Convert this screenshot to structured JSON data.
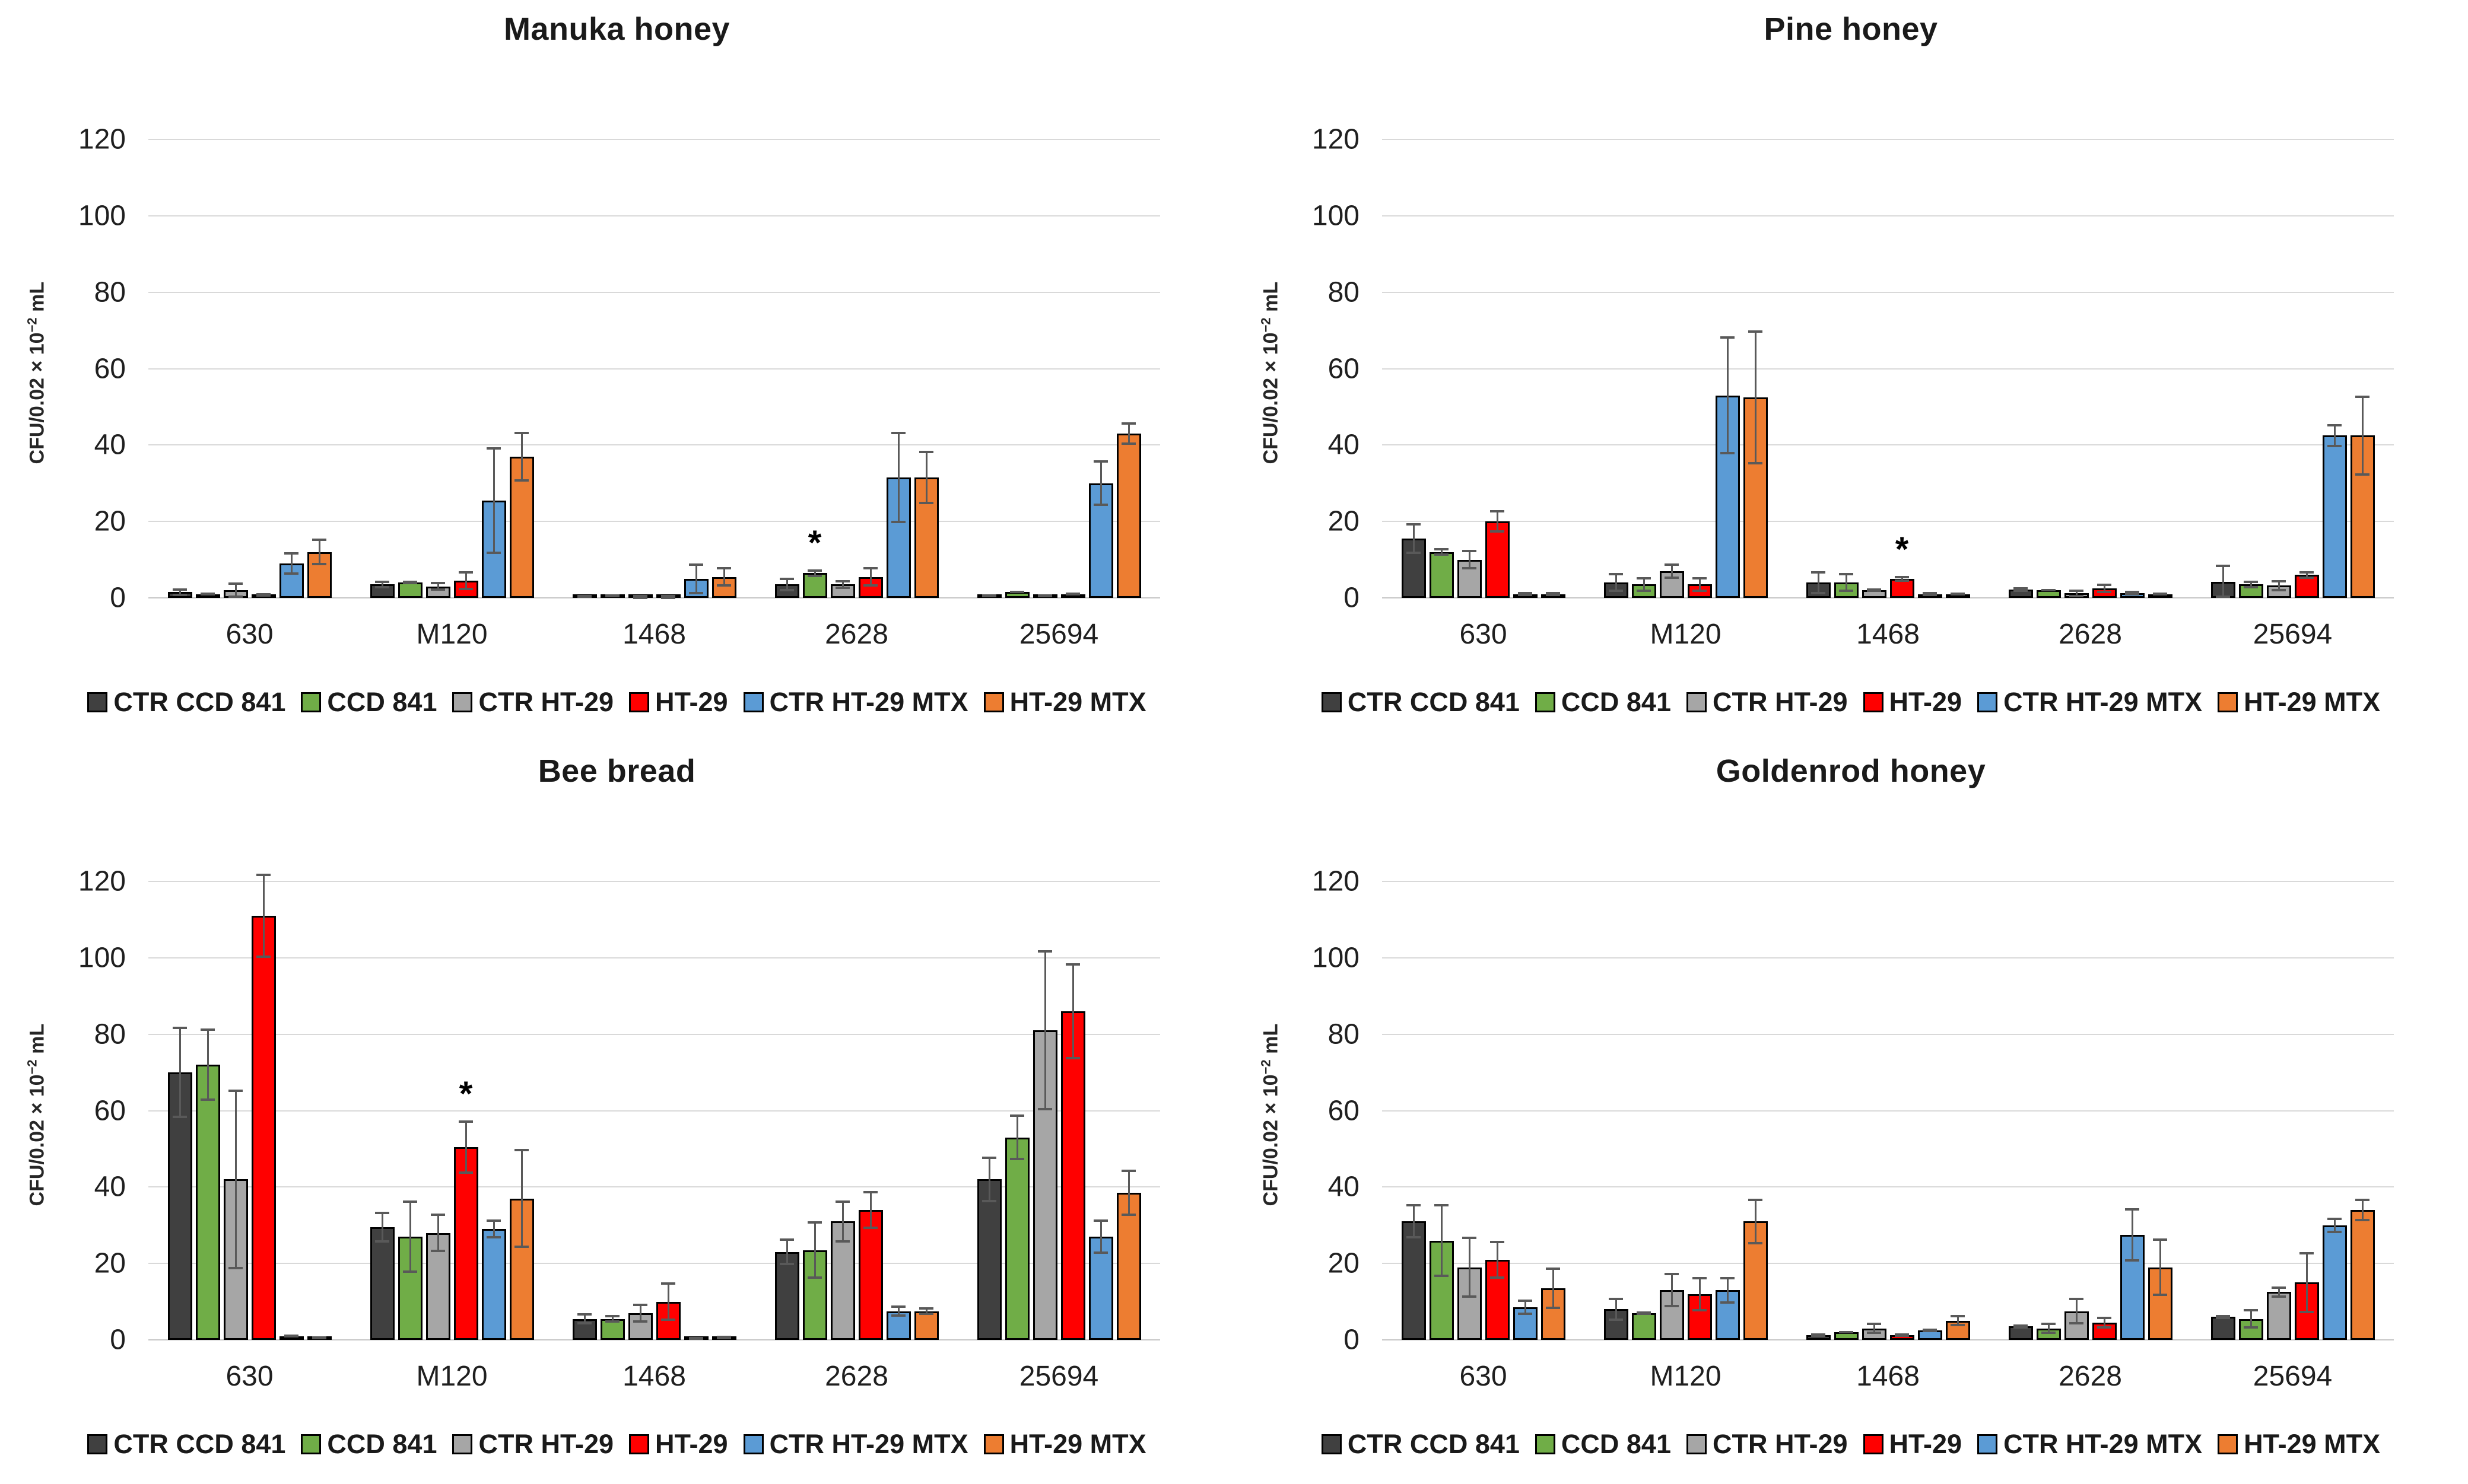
{
  "ylabel_parts": {
    "prefix": "CFU/0.02 × 10",
    "sup": "−2",
    "suffix": " mL"
  },
  "yticks": [
    0,
    20,
    40,
    60,
    80,
    100,
    120
  ],
  "categories": [
    "630",
    "M120",
    "1468",
    "2628",
    "25694"
  ],
  "legend": [
    {
      "label": "CTR CCD 841",
      "color": "#404040"
    },
    {
      "label": "CCD 841",
      "color": "#70AD47"
    },
    {
      "label": "CTR HT-29",
      "color": "#A6A6A6"
    },
    {
      "label": "HT-29",
      "color": "#FF0000"
    },
    {
      "label": "CTR HT-29 MTX",
      "color": "#5B9BD5"
    },
    {
      "label": "HT-29 MTX",
      "color": "#ED7D31"
    }
  ],
  "style": {
    "bar_border": "#000000",
    "error_bar_color": "#595959",
    "gridline_color": "#D9D9D9",
    "background": "#FFFFFF"
  },
  "chart_data": [
    {
      "type": "bar",
      "title": "Manuka honey",
      "xlabel": "",
      "ylabel": "CFU/0.02 × 10⁻² mL",
      "ylim": [
        0,
        120
      ],
      "grid": true,
      "legend_position": "bottom",
      "categories": [
        "630",
        "M120",
        "1468",
        "2628",
        "25694"
      ],
      "series": [
        {
          "name": "CTR CCD 841",
          "color": "#404040",
          "values": [
            1.5,
            3.5,
            0.4,
            3.5,
            0.5
          ],
          "errors": [
            1,
            1,
            0.2,
            1.8,
            0.2
          ]
        },
        {
          "name": "CCD 841",
          "color": "#70AD47",
          "values": [
            1,
            4,
            0.5,
            6.5,
            1.5
          ],
          "errors": [
            0.4,
            0.5,
            0.2,
            1,
            0.3
          ]
        },
        {
          "name": "CTR HT-29",
          "color": "#A6A6A6",
          "values": [
            2,
            3,
            0.2,
            3.5,
            0.5
          ],
          "errors": [
            2,
            1.2,
            0.1,
            1.2,
            0.2
          ]
        },
        {
          "name": "HT-29",
          "color": "#FF0000",
          "values": [
            0.8,
            4.5,
            0.2,
            5.5,
            1
          ],
          "errors": [
            0.5,
            2.5,
            0.1,
            2.5,
            0.3
          ]
        },
        {
          "name": "CTR HT-29 MTX",
          "color": "#5B9BD5",
          "values": [
            9,
            25.5,
            5,
            31.5,
            30
          ],
          "errors": [
            3,
            14,
            4,
            12,
            6
          ]
        },
        {
          "name": "HT-29 MTX",
          "color": "#ED7D31",
          "values": [
            12,
            37,
            5.5,
            31.5,
            43
          ],
          "errors": [
            3.5,
            6.5,
            2.5,
            7,
            3
          ]
        }
      ],
      "annotations": [
        {
          "category": "2628",
          "series": "CCD 841",
          "symbol": "*"
        }
      ]
    },
    {
      "type": "bar",
      "title": "Pine honey",
      "xlabel": "",
      "ylabel": "CFU/0.02 × 10⁻² mL",
      "ylim": [
        0,
        120
      ],
      "grid": true,
      "legend_position": "bottom",
      "categories": [
        "630",
        "M120",
        "1468",
        "2628",
        "25694"
      ],
      "series": [
        {
          "name": "CTR CCD 841",
          "color": "#404040",
          "values": [
            15.5,
            4,
            4,
            2.2,
            4.2
          ],
          "errors": [
            4,
            2.5,
            3,
            0.6,
            4.5
          ]
        },
        {
          "name": "CCD 841",
          "color": "#70AD47",
          "values": [
            12,
            3.5,
            4,
            2,
            3.5
          ],
          "errors": [
            1,
            2,
            2.5,
            0.3,
            1
          ]
        },
        {
          "name": "CTR HT-29",
          "color": "#A6A6A6",
          "values": [
            10,
            7,
            2,
            1.2,
            3.2
          ],
          "errors": [
            2.5,
            2,
            0.5,
            1,
            1.5
          ]
        },
        {
          "name": "HT-29",
          "color": "#FF0000",
          "values": [
            20,
            3.5,
            5,
            2.5,
            6
          ],
          "errors": [
            3,
            2,
            0.8,
            1.2,
            1
          ]
        },
        {
          "name": "CTR HT-29 MTX",
          "color": "#5B9BD5",
          "values": [
            1,
            53,
            1,
            1.2,
            42.5
          ],
          "errors": [
            0.5,
            15.5,
            0.5,
            0.6,
            3
          ]
        },
        {
          "name": "HT-29 MTX",
          "color": "#ED7D31",
          "values": [
            1,
            52.5,
            1,
            1,
            42.5
          ],
          "errors": [
            0.5,
            17.5,
            0.3,
            0.3,
            10.5
          ]
        }
      ],
      "annotations": [
        {
          "category": "1468",
          "series": "HT-29",
          "symbol": "*"
        }
      ]
    },
    {
      "type": "bar",
      "title": "Bee bread",
      "xlabel": "",
      "ylabel": "CFU/0.02 × 10⁻² mL",
      "ylim": [
        0,
        120
      ],
      "grid": true,
      "legend_position": "bottom",
      "categories": [
        "630",
        "M120",
        "1468",
        "2628",
        "25694"
      ],
      "series": [
        {
          "name": "CTR CCD 841",
          "color": "#404040",
          "values": [
            70,
            29.5,
            5.5,
            23,
            42
          ],
          "errors": [
            12,
            4,
            1.5,
            3.5,
            6
          ]
        },
        {
          "name": "CCD 841",
          "color": "#70AD47",
          "values": [
            72,
            27,
            5.5,
            23.5,
            53
          ],
          "errors": [
            9.5,
            9.5,
            1,
            7.5,
            6
          ]
        },
        {
          "name": "CTR HT-29",
          "color": "#A6A6A6",
          "values": [
            42,
            28,
            7,
            31,
            81
          ],
          "errors": [
            23.5,
            5,
            2.5,
            5.5,
            21
          ]
        },
        {
          "name": "HT-29",
          "color": "#FF0000",
          "values": [
            111,
            50.5,
            10,
            34,
            86
          ],
          "errors": [
            11,
            7,
            5,
            5,
            12.5
          ]
        },
        {
          "name": "CTR HT-29 MTX",
          "color": "#5B9BD5",
          "values": [
            1,
            29,
            0.4,
            7.5,
            27
          ],
          "errors": [
            0.3,
            2.5,
            0.2,
            1.5,
            4.5
          ]
        },
        {
          "name": "HT-29 MTX",
          "color": "#ED7D31",
          "values": [
            0.5,
            37,
            0.6,
            7.5,
            38.5
          ],
          "errors": [
            0.2,
            13,
            0.2,
            1,
            6
          ]
        }
      ],
      "annotations": [
        {
          "category": "M120",
          "series": "HT-29",
          "symbol": "*"
        }
      ]
    },
    {
      "type": "bar",
      "title": "Goldenrod honey",
      "xlabel": "",
      "ylabel": "CFU/0.02 × 10⁻² mL",
      "ylim": [
        0,
        120
      ],
      "grid": true,
      "legend_position": "bottom",
      "categories": [
        "630",
        "M120",
        "1468",
        "2628",
        "25694"
      ],
      "series": [
        {
          "name": "CTR CCD 841",
          "color": "#404040",
          "values": [
            31,
            8,
            1.2,
            3.5,
            6
          ],
          "errors": [
            4.5,
            3,
            0.5,
            0.5,
            0.5
          ]
        },
        {
          "name": "CCD 841",
          "color": "#70AD47",
          "values": [
            26,
            7,
            2,
            3,
            5.5
          ],
          "errors": [
            9.5,
            0.5,
            0.3,
            1.5,
            2.5
          ]
        },
        {
          "name": "CTR HT-29",
          "color": "#A6A6A6",
          "values": [
            19,
            13,
            3,
            7.5,
            12.5
          ],
          "errors": [
            8,
            4.5,
            1.5,
            3.5,
            1.5
          ]
        },
        {
          "name": "HT-29",
          "color": "#FF0000",
          "values": [
            21,
            12,
            1.2,
            4.5,
            15
          ],
          "errors": [
            5,
            4.5,
            0.5,
            1.5,
            8
          ]
        },
        {
          "name": "CTR HT-29 MTX",
          "color": "#5B9BD5",
          "values": [
            8.5,
            13,
            2.5,
            27.5,
            30
          ],
          "errors": [
            2,
            3.5,
            0.5,
            7,
            2
          ]
        },
        {
          "name": "HT-29 MTX",
          "color": "#ED7D31",
          "values": [
            13.5,
            31,
            5,
            19,
            34
          ],
          "errors": [
            5.5,
            6,
            1.5,
            7.5,
            3
          ]
        }
      ],
      "annotations": []
    }
  ]
}
